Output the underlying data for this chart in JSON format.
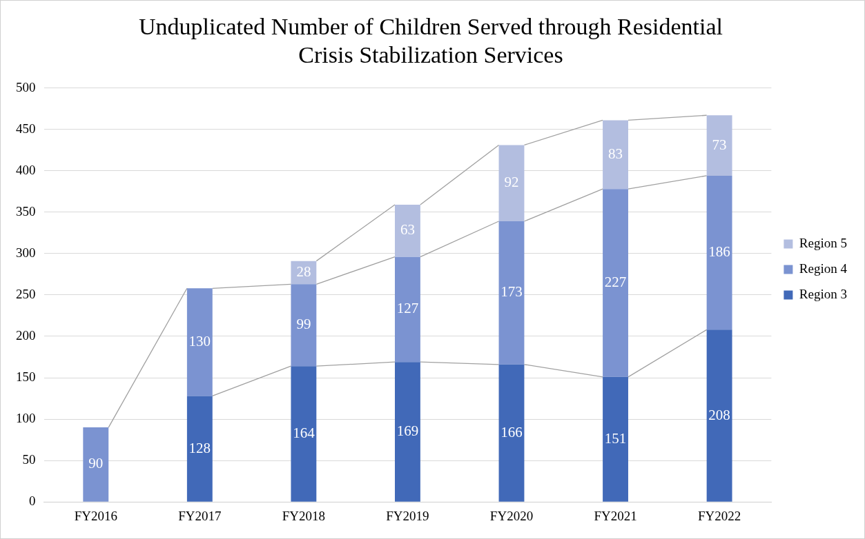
{
  "chart_data": {
    "type": "bar",
    "title": "Unduplicated Number of Children Served through Residential Crisis Stabilization Services",
    "categories": [
      "FY2016",
      "FY2017",
      "FY2018",
      "FY2019",
      "FY2020",
      "FY2021",
      "FY2022"
    ],
    "stacked": true,
    "series": [
      {
        "name": "Region 3",
        "color": "#4169b8",
        "values": [
          null,
          128,
          164,
          169,
          166,
          151,
          208
        ]
      },
      {
        "name": "Region 4",
        "color": "#7b93d1",
        "values": [
          90,
          130,
          99,
          127,
          173,
          227,
          186
        ]
      },
      {
        "name": "Region 5",
        "color": "#b3bee0",
        "values": [
          null,
          null,
          28,
          63,
          92,
          83,
          73
        ]
      }
    ],
    "ylim": [
      0,
      500
    ],
    "yticks": [
      0,
      50,
      100,
      150,
      200,
      250,
      300,
      350,
      400,
      450,
      500
    ],
    "grid": "y",
    "legend": "right",
    "data_labels": true
  }
}
